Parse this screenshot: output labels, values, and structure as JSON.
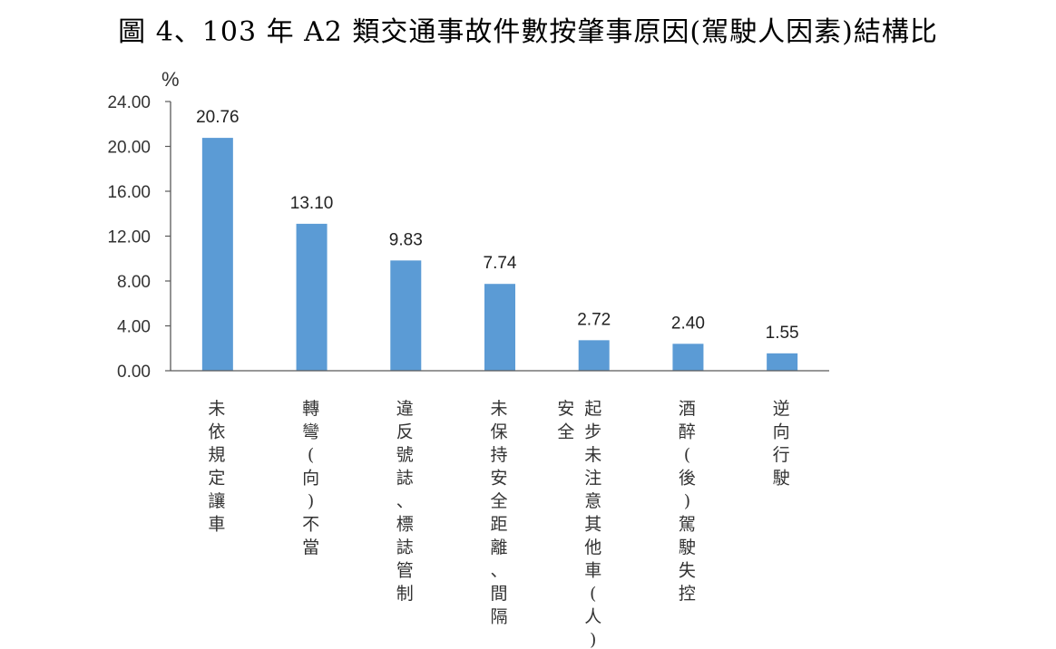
{
  "chart_data": {
    "type": "bar",
    "title": "圖 4、103 年 A2 類交通事故件數按肇事原因(駕駛人因素)結構比",
    "ylabel": "%",
    "xlabel": "",
    "ylim": [
      0,
      24
    ],
    "yticks": [
      "0.00",
      "4.00",
      "8.00",
      "12.00",
      "16.00",
      "20.00",
      "24.00"
    ],
    "categories": [
      [
        "未依規定讓車"
      ],
      [
        "轉彎(向)不當"
      ],
      [
        "違反號誌、標誌管制"
      ],
      [
        "未保持安全距離、間隔"
      ],
      [
        "起步未注意其他車(人)",
        "安全"
      ],
      [
        "酒醉(後)駕駛失控"
      ],
      [
        "逆向行駛"
      ]
    ],
    "values": [
      20.76,
      13.1,
      9.83,
      7.74,
      2.72,
      2.4,
      1.55
    ],
    "value_labels": [
      "20.76",
      "13.10",
      "9.83",
      "7.74",
      "2.72",
      "2.40",
      "1.55"
    ],
    "bar_color": "#5b9bd5",
    "grid": false,
    "legend": "none"
  }
}
